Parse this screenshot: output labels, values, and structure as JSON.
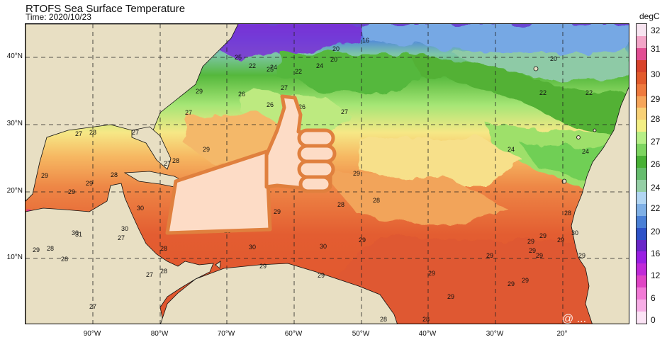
{
  "header": {
    "title": "RTOFS Sea Surface Temperature",
    "subtitle": "Time: 2020/10/23"
  },
  "colorbar": {
    "unit": "degC",
    "ticks": [
      "32",
      "31",
      "30",
      "29",
      "28",
      "27",
      "26",
      "24",
      "22",
      "20",
      "16",
      "12",
      "6",
      "0"
    ],
    "colors": [
      "#f7e4f0",
      "#f3a5c8",
      "#e24e93",
      "#d9432b",
      "#e35b2c",
      "#ef7a3e",
      "#f6a55a",
      "#f8d176",
      "#f3ef84",
      "#b6ef86",
      "#7dd560",
      "#48b135",
      "#66bd6e",
      "#95cfa6",
      "#b2d6f3",
      "#7fb0e6",
      "#4a80d6",
      "#2e52c8",
      "#6a26c8",
      "#9a1fe3",
      "#c02ad8",
      "#e045c5",
      "#f27ad6",
      "#f7aee6",
      "#fbe3f5"
    ]
  },
  "axes": {
    "lat_labels": [
      "40°N",
      "30°N",
      "20°N",
      "10°N"
    ],
    "lon_labels": [
      "90°W",
      "80°W",
      "70°W",
      "60°W",
      "50°W",
      "40°W",
      "30°W",
      "20°"
    ]
  },
  "contour_labels": [
    "16",
    "20",
    "20",
    "20",
    "22",
    "22",
    "22",
    "22",
    "24",
    "24",
    "24",
    "24",
    "25",
    "25",
    "26",
    "26",
    "26",
    "27",
    "27",
    "27",
    "27",
    "27",
    "27",
    "27",
    "27",
    "27",
    "27",
    "28",
    "28",
    "28",
    "28",
    "28",
    "28",
    "28",
    "28",
    "28",
    "28",
    "28",
    "28",
    "28",
    "28",
    "29",
    "29",
    "29",
    "29",
    "29",
    "29",
    "29",
    "29",
    "29",
    "29",
    "29",
    "29",
    "29",
    "29",
    "29",
    "29",
    "29",
    "29",
    "29",
    "29",
    "29",
    "29",
    "29",
    "30",
    "30",
    "30",
    "30",
    "30",
    "30",
    "30",
    "31"
  ],
  "overlay": {
    "icon": "thumbs-up-icon"
  },
  "watermark": "@ ..."
}
